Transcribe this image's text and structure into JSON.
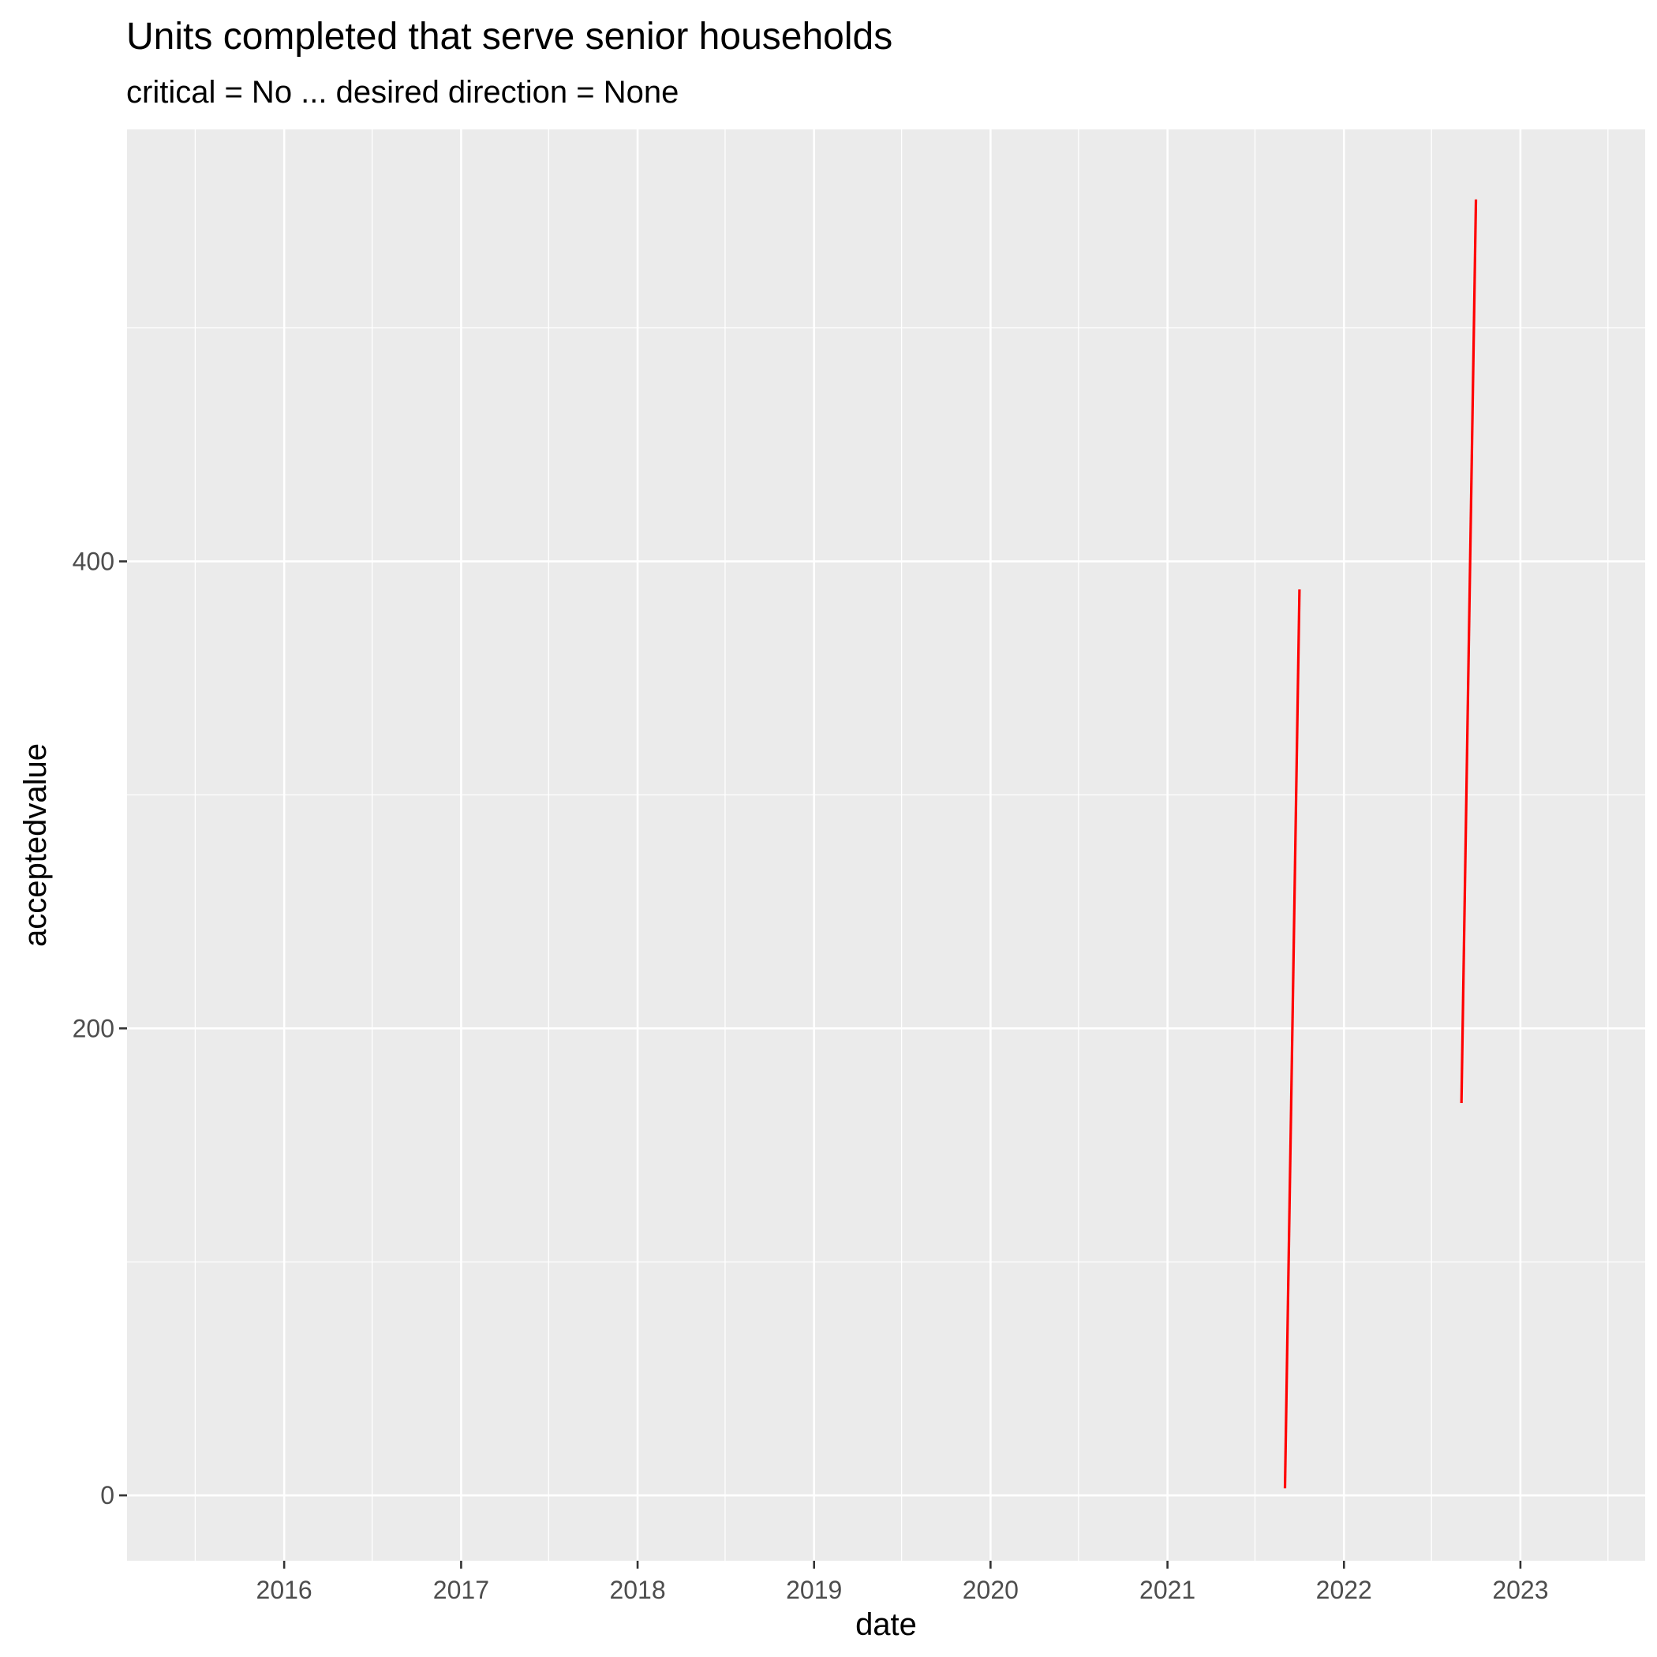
{
  "chart_data": {
    "type": "line",
    "title": "Units completed that serve senior households",
    "subtitle": "critical = No ... desired direction = None",
    "xlabel": "date",
    "ylabel": "acceptedvalue",
    "x_ticks": [
      "2016",
      "2017",
      "2018",
      "2019",
      "2020",
      "2021",
      "2022",
      "2023"
    ],
    "y_ticks": [
      0,
      200,
      400
    ],
    "xlim": [
      "2015-02-10",
      "2023-09-16"
    ],
    "ylim": [
      -28,
      585
    ],
    "grid": true,
    "legend": "none",
    "background": "#ebebeb",
    "series": [
      {
        "color": "#ff0000",
        "points": [
          {
            "x": "2021-09-01",
            "y": 3
          },
          {
            "x": "2021-10-01",
            "y": 388
          }
        ]
      },
      {
        "color": "#ff0000",
        "points": [
          {
            "x": "2022-09-01",
            "y": 168
          },
          {
            "x": "2022-10-01",
            "y": 555
          }
        ]
      }
    ]
  }
}
